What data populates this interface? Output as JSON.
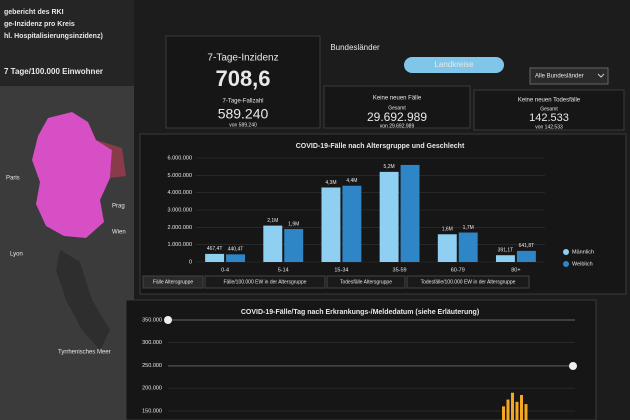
{
  "sidebar": {
    "title_lines": [
      "gebericht des RKI",
      "ge-Inzidenz pro Kreis",
      "hl. Hospitalisierungsinzidenz)"
    ],
    "map_title": "7 Tage/100.000 Einwohner",
    "map_labels": [
      "Paris",
      "Lyon",
      "Prag",
      "Wien",
      "Tyrrhenisches Meer"
    ]
  },
  "tabs": [
    "Bundesländer",
    "Landkreise"
  ],
  "dropdown": "Alle Bundesländer",
  "kpis": [
    {
      "title": "7-Tage-Inzidenz",
      "value": "708,6",
      "sublabel": "7-Tage-Fallzahl",
      "subvalue": "589.240",
      "note": "von 589.240"
    },
    {
      "title": "Keine neuen Fälle",
      "sublabel": "Gesamt",
      "subvalue": "29.692.989",
      "note": "von 29.692.989"
    },
    {
      "title": "Keine neuen Todesfälle",
      "sublabel": "Gesamt",
      "subvalue": "142.533",
      "note": "von 142.533"
    }
  ],
  "chart_data": [
    {
      "type": "bar",
      "title": "COVID-19-Fälle nach Altersgruppe und Geschlecht",
      "categories": [
        "0-4",
        "5-14",
        "15-34",
        "35-59",
        "60-79",
        "80+"
      ],
      "series": [
        {
          "name": "Männlich",
          "color": "#8fd0f2",
          "values": [
            467400,
            2100000,
            4300000,
            5200000,
            1600000,
            391100
          ],
          "value_labels": [
            "467,4T",
            "2,1M",
            "4,3M",
            "5,2M",
            "1,6M",
            "391,1T"
          ]
        },
        {
          "name": "Weiblich",
          "color": "#2f86c6",
          "values": [
            440400,
            1900000,
            4400000,
            5600000,
            1700000,
            641800
          ],
          "value_labels": [
            "440,4T",
            "1,9M",
            "4,4M",
            null,
            "1,7M",
            "641,8T"
          ]
        }
      ],
      "ylim": [
        0,
        6000000
      ],
      "yticks": [
        {
          "value": 0,
          "label": "0"
        },
        {
          "value": 1000000,
          "label": "1.000.000"
        },
        {
          "value": 2000000,
          "label": "2.000.000"
        },
        {
          "value": 3000000,
          "label": "3.000.000"
        },
        {
          "value": 4000000,
          "label": "4.000.000"
        },
        {
          "value": 5000000,
          "label": "5.000.000"
        },
        {
          "value": 6000000,
          "label": "6.000.000"
        }
      ],
      "grid": true,
      "tabs": [
        "Fälle Altersgruppe",
        "Fälle/100.000 EW in der Altersgruppe",
        "Todesfälle Altersgruppe",
        "Todesfälle/100.000 EW in der Altersgruppe"
      ]
    },
    {
      "type": "bar",
      "title": "COVID-19-Fälle/Tag nach Erkrankungs-/Meldedatum (siehe Erläuterung)",
      "color": "#f5a623",
      "values": [
        160000,
        175000,
        190000,
        170000,
        185000,
        165000
      ],
      "ylim": [
        130000,
        350000
      ],
      "yticks": [
        {
          "value": 150000,
          "label": "150.000"
        },
        {
          "value": 200000,
          "label": "200.000"
        },
        {
          "value": 250000,
          "label": "250.000"
        },
        {
          "value": 300000,
          "label": "300.000"
        },
        {
          "value": 350000,
          "label": "350.000"
        }
      ],
      "grid": true
    }
  ]
}
